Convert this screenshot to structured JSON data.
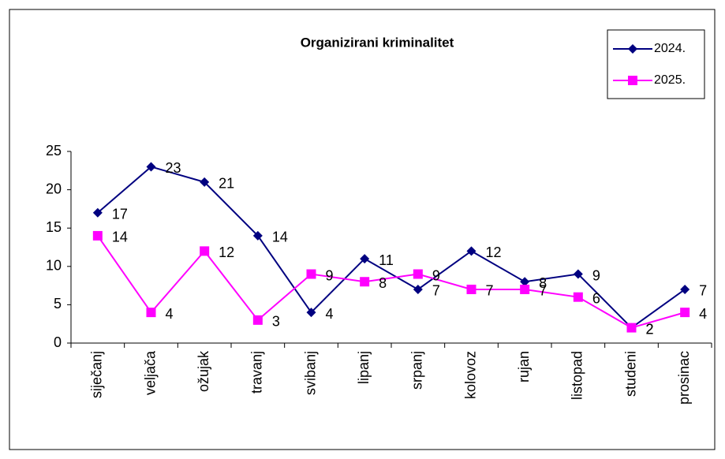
{
  "chart_data": {
    "type": "line",
    "title": "Organizirani kriminalitet",
    "categories": [
      "siječanj",
      "veljača",
      "ožujak",
      "travanj",
      "svibanj",
      "lipanj",
      "srpanj",
      "kolovoz",
      "rujan",
      "listopad",
      "studeni",
      "prosinac"
    ],
    "series": [
      {
        "name": "2024.",
        "color": "#000080",
        "marker": "diamond",
        "values": [
          17,
          23,
          21,
          14,
          4,
          11,
          7,
          12,
          8,
          9,
          2,
          7
        ]
      },
      {
        "name": "2025.",
        "color": "#ff00ff",
        "marker": "square",
        "values": [
          14,
          4,
          12,
          3,
          9,
          8,
          9,
          7,
          7,
          6,
          2,
          4
        ]
      }
    ],
    "ylim": [
      0,
      25
    ],
    "yticks": [
      0,
      5,
      10,
      15,
      20,
      25
    ],
    "grid": false,
    "legend": "top-right"
  }
}
